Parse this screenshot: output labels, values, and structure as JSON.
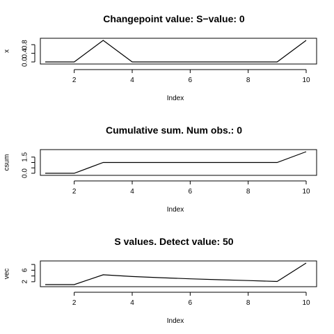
{
  "chart_data": [
    {
      "type": "line",
      "title": "Changepoint value:    S−value: 0",
      "xlabel": "Index",
      "ylabel": "x",
      "x": [
        1,
        2,
        3,
        4,
        5,
        6,
        7,
        8,
        9,
        10
      ],
      "values": [
        0,
        0,
        1,
        0,
        0,
        0,
        0,
        0,
        0,
        1
      ],
      "xlim": [
        1,
        10
      ],
      "ylim": [
        0,
        1
      ],
      "xticks": [
        2,
        4,
        6,
        8,
        10
      ],
      "yticks": [
        0.0,
        0.4,
        0.8
      ],
      "ytick_labels": [
        "0.0",
        "0.4",
        "0.8"
      ],
      "grid": false
    },
    {
      "type": "line",
      "title": "Cumulative sum. Num obs.: 0",
      "xlabel": "Index",
      "ylabel": "csum",
      "x": [
        1,
        2,
        3,
        4,
        5,
        6,
        7,
        8,
        9,
        10
      ],
      "values": [
        0,
        0,
        1,
        1,
        1,
        1,
        1,
        1,
        1,
        2
      ],
      "xlim": [
        1,
        10
      ],
      "ylim": [
        0,
        2
      ],
      "xticks": [
        2,
        4,
        6,
        8,
        10
      ],
      "yticks": [
        0.0,
        0.5,
        1.0,
        1.5
      ],
      "ytick_labels": [
        "0.0",
        "",
        "",
        "1.5"
      ],
      "grid": false
    },
    {
      "type": "line",
      "title": "S values. Detect value:  50",
      "xlabel": "Index",
      "ylabel": "vec",
      "x": [
        1,
        2,
        3,
        4,
        5,
        6,
        7,
        8,
        9,
        10
      ],
      "values": [
        1,
        1,
        4.4,
        3.8,
        3.4,
        3.0,
        2.7,
        2.4,
        2.1,
        8.5
      ],
      "xlim": [
        1,
        10
      ],
      "ylim": [
        1,
        8.5
      ],
      "xticks": [
        2,
        4,
        6,
        8,
        10
      ],
      "yticks": [
        2,
        4,
        6,
        8
      ],
      "ytick_labels": [
        "2",
        "",
        "6",
        ""
      ],
      "grid": false
    }
  ]
}
